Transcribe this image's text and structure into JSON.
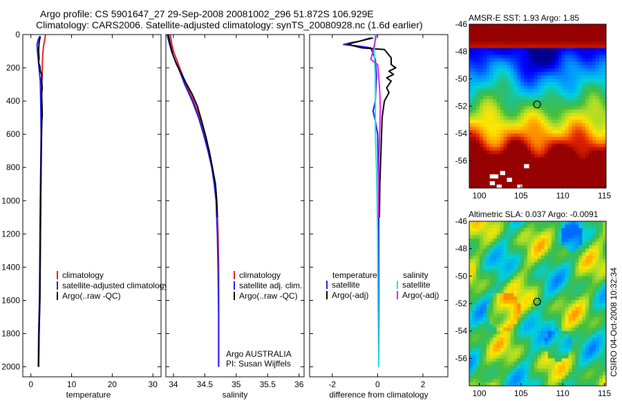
{
  "header": {
    "line1": "Argo profile: CS 5901647_27 29-Sep-2008 20081002_296 51.872S 106.929E",
    "line2": "Climatology: CARS2006. Satellite-adjusted climatology: synTS_20080928.nc (1.6d earlier)"
  },
  "side_text": "CSIRO 04-Oct-2008 10:32:34",
  "colors": {
    "red": "#dd2020",
    "blue": "#1a1aee",
    "black": "#000000",
    "cyan": "#22e0e0",
    "magenta": "#e020e0"
  },
  "chart_data": [
    {
      "type": "line",
      "xlabel": "temperature",
      "x_ticks": [
        "0",
        "10",
        "20",
        "30"
      ],
      "y_ticks": [
        "0",
        "200",
        "400",
        "600",
        "800",
        "1000",
        "1200",
        "1400",
        "1600",
        "1800",
        "2000"
      ],
      "xlim": [
        -2,
        32
      ],
      "ylim": [
        2060,
        0
      ],
      "legend": [
        "climatology",
        "satellite-adjusted climatology",
        "Argo(..raw -QC)"
      ],
      "series": [
        {
          "name": "climatology",
          "color": "red",
          "points": [
            [
              3.6,
              0
            ],
            [
              3.4,
              30
            ],
            [
              3.1,
              70
            ],
            [
              2.9,
              120
            ],
            [
              2.8,
              200
            ],
            [
              2.7,
              300
            ],
            [
              2.6,
              500
            ],
            [
              2.5,
              700
            ],
            [
              2.4,
              1000
            ],
            [
              2.3,
              1300
            ],
            [
              2.2,
              1600
            ],
            [
              2.0,
              1800
            ],
            [
              1.9,
              2000
            ]
          ]
        },
        {
          "name": "satellite-adjusted climatology",
          "color": "blue",
          "points": [
            [
              2.2,
              10
            ],
            [
              1.8,
              30
            ],
            [
              1.5,
              60
            ],
            [
              1.6,
              100
            ],
            [
              1.8,
              150
            ],
            [
              2.0,
              200
            ],
            [
              2.3,
              280
            ],
            [
              2.4,
              400
            ],
            [
              2.5,
              600
            ],
            [
              2.4,
              800
            ],
            [
              2.3,
              1000
            ],
            [
              2.2,
              1300
            ],
            [
              2.1,
              1600
            ],
            [
              1.9,
              1800
            ],
            [
              1.8,
              2000
            ]
          ]
        },
        {
          "name": "Argo(..raw -QC)",
          "color": "black",
          "points": [
            [
              2.3,
              10
            ],
            [
              2.0,
              50
            ],
            [
              1.9,
              100
            ],
            [
              2.0,
              140
            ],
            [
              1.9,
              170
            ],
            [
              2.2,
              190
            ],
            [
              2.3,
              220
            ],
            [
              2.7,
              240
            ],
            [
              2.6,
              280
            ],
            [
              2.8,
              320
            ],
            [
              2.6,
              360
            ],
            [
              2.7,
              400
            ],
            [
              2.8,
              480
            ],
            [
              2.7,
              520
            ],
            [
              2.6,
              600
            ],
            [
              2.5,
              800
            ],
            [
              2.4,
              1000
            ],
            [
              2.3,
              1300
            ],
            [
              2.2,
              1600
            ],
            [
              2.0,
              1800
            ],
            [
              1.9,
              2000
            ]
          ]
        }
      ]
    },
    {
      "type": "line",
      "xlabel": "salinity",
      "x_ticks": [
        "34",
        "34.5",
        "35",
        "35.5",
        "36"
      ],
      "xlim": [
        33.88,
        36.08
      ],
      "ylim": [
        2060,
        0
      ],
      "legend": [
        "climatology",
        "satellite adj. clim.",
        "Argo(..raw -QC)"
      ],
      "annotation": [
        "Argo AUSTRALIA",
        "PI: Susan Wijffels"
      ],
      "series": [
        {
          "name": "climatology",
          "color": "red",
          "points": [
            [
              33.95,
              0
            ],
            [
              33.97,
              50
            ],
            [
              34.0,
              100
            ],
            [
              34.05,
              150
            ],
            [
              34.1,
              200
            ],
            [
              34.2,
              300
            ],
            [
              34.32,
              400
            ],
            [
              34.42,
              500
            ],
            [
              34.5,
              600
            ],
            [
              34.57,
              700
            ],
            [
              34.62,
              800
            ],
            [
              34.66,
              900
            ],
            [
              34.69,
              1000
            ],
            [
              34.71,
              1200
            ],
            [
              34.72,
              1400
            ],
            [
              34.72,
              1700
            ],
            [
              34.72,
              2000
            ]
          ]
        },
        {
          "name": "satellite adj. clim.",
          "color": "blue",
          "points": [
            [
              33.9,
              0
            ],
            [
              33.92,
              30
            ],
            [
              33.94,
              60
            ],
            [
              33.97,
              100
            ],
            [
              34.02,
              150
            ],
            [
              34.08,
              200
            ],
            [
              34.18,
              300
            ],
            [
              34.3,
              400
            ],
            [
              34.4,
              500
            ],
            [
              34.48,
              600
            ],
            [
              34.55,
              700
            ],
            [
              34.61,
              800
            ],
            [
              34.65,
              900
            ],
            [
              34.68,
              1000
            ],
            [
              34.7,
              1200
            ],
            [
              34.71,
              1400
            ],
            [
              34.72,
              1700
            ],
            [
              34.72,
              2000
            ]
          ]
        },
        {
          "name": "Argo(..raw -QC)",
          "color": "black",
          "points": [
            [
              33.92,
              0
            ],
            [
              33.95,
              60
            ],
            [
              33.99,
              120
            ],
            [
              34.05,
              180
            ],
            [
              34.12,
              230
            ],
            [
              34.2,
              290
            ],
            [
              34.3,
              360
            ],
            [
              34.38,
              430
            ],
            [
              34.45,
              520
            ],
            [
              34.52,
              620
            ],
            [
              34.58,
              720
            ],
            [
              34.62,
              800
            ],
            [
              34.67,
              900
            ],
            [
              34.69,
              1000
            ],
            [
              34.7,
              1100
            ]
          ]
        }
      ]
    },
    {
      "type": "line",
      "xlabel": "difference from climatology",
      "x_ticks": [
        "-2",
        "0",
        "2"
      ],
      "xlim": [
        -3,
        3.1
      ],
      "ylim": [
        2060,
        0
      ],
      "legend": [
        {
          "group": "temperature",
          "items": [
            "satellite",
            "Argo(-adj)"
          ]
        },
        {
          "group": "salinity",
          "items": [
            "satellite",
            "Argo(-adj)"
          ]
        }
      ],
      "series": [
        {
          "name": "temperature satellite",
          "color": "blue",
          "points": [
            [
              -0.3,
              20
            ],
            [
              -0.8,
              40
            ],
            [
              -1.2,
              50
            ],
            [
              -1.5,
              60
            ],
            [
              -0.8,
              70
            ],
            [
              -0.3,
              80
            ],
            [
              -0.1,
              150
            ],
            [
              -0.05,
              250
            ],
            [
              -0.1,
              400
            ],
            [
              -0.2,
              460
            ],
            [
              -0.1,
              520
            ],
            [
              0,
              600
            ],
            [
              0.03,
              800
            ],
            [
              0.05,
              1000
            ],
            [
              0.05,
              1400
            ],
            [
              0.05,
              2000
            ]
          ]
        },
        {
          "name": "temperature Argo(-adj)",
          "color": "black",
          "points": [
            [
              -0.2,
              20
            ],
            [
              -1.1,
              50
            ],
            [
              -1.3,
              60
            ],
            [
              -0.7,
              80
            ],
            [
              0.3,
              90
            ],
            [
              0.6,
              140
            ],
            [
              0.6,
              180
            ],
            [
              0.8,
              200
            ],
            [
              0.5,
              220
            ],
            [
              0.7,
              240
            ],
            [
              0.4,
              260
            ],
            [
              0.6,
              280
            ],
            [
              0.4,
              320
            ],
            [
              0.5,
              350
            ],
            [
              0.3,
              400
            ],
            [
              0.2,
              500
            ],
            [
              0.15,
              700
            ],
            [
              0.1,
              900
            ],
            [
              0.08,
              1100
            ]
          ]
        },
        {
          "name": "salinity satellite",
          "color": "cyan",
          "points": [
            [
              -0.1,
              0
            ],
            [
              -0.15,
              100
            ],
            [
              -0.1,
              250
            ],
            [
              -0.1,
              400
            ],
            [
              -0.1,
              600
            ],
            [
              -0.05,
              800
            ],
            [
              -0.02,
              1000
            ],
            [
              0,
              1200
            ],
            [
              0.02,
              1600
            ],
            [
              0.05,
              2000
            ]
          ]
        },
        {
          "name": "salinity Argo(-adj)",
          "color": "magenta",
          "points": [
            [
              -0.05,
              0
            ],
            [
              -0.2,
              100
            ],
            [
              -0.3,
              150
            ],
            [
              0.0,
              180
            ],
            [
              0.05,
              250
            ],
            [
              0.1,
              350
            ],
            [
              0.12,
              450
            ],
            [
              0.1,
              550
            ],
            [
              0.08,
              650
            ],
            [
              0.06,
              750
            ],
            [
              0.05,
              850
            ],
            [
              0.04,
              1000
            ],
            [
              0.04,
              1100
            ]
          ]
        }
      ]
    },
    {
      "type": "heatmap",
      "title": "AMSR-E SST: 1.93 Argo: 1.85",
      "x_ticks": [
        "100",
        "105",
        "110",
        "115"
      ],
      "y_ticks": [
        "-46",
        "-48",
        "-50",
        "-52",
        "-54",
        "-56"
      ],
      "xlim": [
        98.8,
        115.2
      ],
      "ylim": [
        -58,
        -46
      ],
      "marker": [
        106.93,
        -51.87
      ]
    },
    {
      "type": "heatmap",
      "title": "Altimetric SLA: 0.037 Argo: -0.0091",
      "x_ticks": [
        "100",
        "105",
        "110",
        "115"
      ],
      "y_ticks": [
        "-46",
        "-48",
        "-50",
        "-52",
        "-54",
        "-56"
      ],
      "xlim": [
        98.8,
        115.2
      ],
      "ylim": [
        -58,
        -46
      ],
      "marker": [
        106.93,
        -51.87
      ]
    }
  ]
}
